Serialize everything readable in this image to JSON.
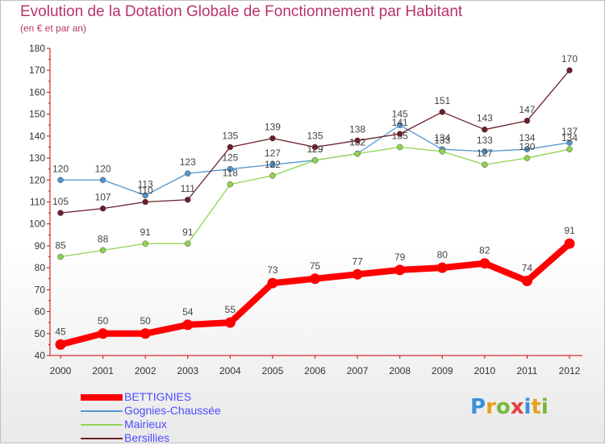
{
  "title": "Evolution de la Dotation Globale de Fonctionnement par Habitant",
  "subtitle": "(en € et par an)",
  "logo": {
    "letters": [
      "P",
      "r",
      "o",
      "x",
      "i",
      "t",
      "i"
    ],
    "colors": [
      "#3a8fd8",
      "#e8a020",
      "#78b83a",
      "#e84040",
      "#3a8fd8",
      "#e8a020",
      "#78b83a"
    ]
  },
  "chart_data": {
    "type": "line",
    "title": "Evolution de la Dotation Globale de Fonctionnement par Habitant",
    "subtitle": "(en € et par an)",
    "xlabel": "",
    "ylabel": "",
    "ylim": [
      40,
      180
    ],
    "yticks": [
      "40",
      "50",
      "60",
      "70",
      "80",
      "90",
      "100",
      "110",
      "120",
      "130",
      "140",
      "150",
      "160",
      "170",
      "180"
    ],
    "x": [
      "2000",
      "2001",
      "2002",
      "2003",
      "2004",
      "2005",
      "2006",
      "2007",
      "2008",
      "2009",
      "2010",
      "2011",
      "2012"
    ],
    "grid": false,
    "legend_position": "bottom-left",
    "series": [
      {
        "name": "BETTIGNIES",
        "color": "#ff0000",
        "values": [
          45,
          50,
          50,
          54,
          55,
          73,
          75,
          77,
          79,
          80,
          82,
          74,
          91
        ],
        "labels": [
          "45",
          "50",
          "50",
          "54",
          "55",
          "73",
          "75",
          "77",
          "79",
          "80",
          "82",
          "74",
          "91"
        ],
        "thick": true
      },
      {
        "name": "Gognies-Chaussée",
        "color": "#4f96d0",
        "values": [
          120,
          120,
          113,
          123,
          125,
          127,
          129,
          132,
          145,
          134,
          133,
          134,
          137
        ],
        "labels": [
          "120",
          "120",
          "113",
          "123",
          "125",
          "127",
          "129",
          "132",
          "145",
          "134",
          "133",
          "134",
          "137"
        ]
      },
      {
        "name": "Mairieux",
        "color": "#8fd44f",
        "values": [
          85,
          88,
          91,
          91,
          118,
          122,
          129,
          132,
          135,
          133,
          127,
          130,
          134
        ],
        "labels": [
          "85",
          "88",
          "91",
          "91",
          "118",
          "122",
          "129",
          "132",
          "135",
          "133",
          "127",
          "130",
          "134"
        ]
      },
      {
        "name": "Bersillies",
        "color": "#6b1f2a",
        "values": [
          105,
          107,
          110,
          111,
          135,
          139,
          135,
          138,
          141,
          151,
          143,
          147,
          170
        ],
        "labels": [
          "105",
          "107",
          "110",
          "111",
          "135",
          "139",
          "135",
          "138",
          "141",
          "151",
          "143",
          "147",
          "170"
        ]
      }
    ]
  }
}
